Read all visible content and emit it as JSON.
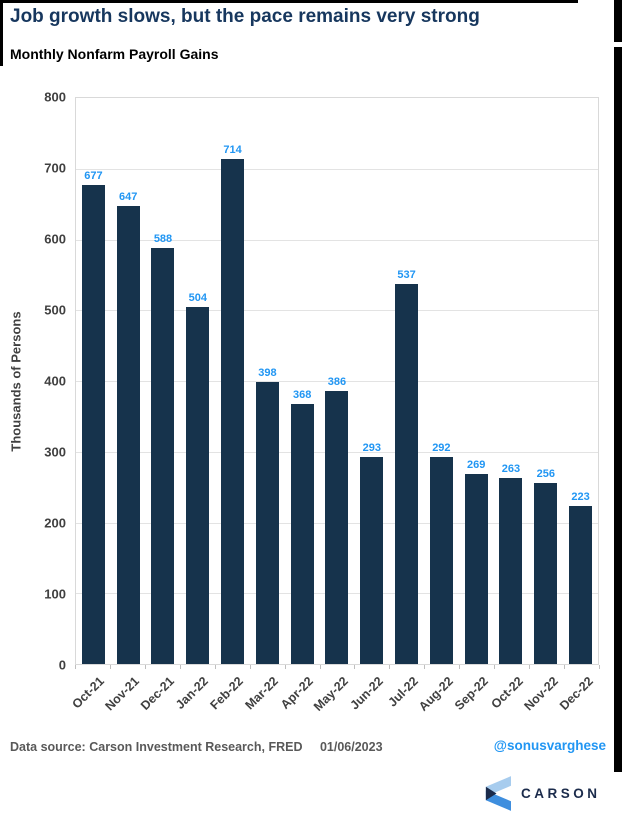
{
  "header": {
    "title": "Job growth slows, but the pace remains very strong",
    "subtitle": "Monthly Nonfarm Payroll Gains"
  },
  "chart_data": {
    "type": "bar",
    "title": "Monthly Nonfarm Payroll Gains",
    "categories": [
      "Oct-21",
      "Nov-21",
      "Dec-21",
      "Jan-22",
      "Feb-22",
      "Mar-22",
      "Apr-22",
      "May-22",
      "Jun-22",
      "Jul-22",
      "Aug-22",
      "Sep-22",
      "Oct-22",
      "Nov-22",
      "Dec-22"
    ],
    "values": [
      677,
      647,
      588,
      504,
      714,
      398,
      368,
      386,
      293,
      537,
      292,
      269,
      263,
      256,
      223
    ],
    "xlabel": "",
    "ylabel": "Thousands of Persons",
    "ylim": [
      0,
      800
    ],
    "yticks": [
      0,
      100,
      200,
      300,
      400,
      500,
      600,
      700,
      800
    ],
    "grid": true,
    "legend": false,
    "bar_color": "#16334C",
    "value_label_color": "#2196F3"
  },
  "footer": {
    "source_label": "Data source:",
    "source_value": "Carson Investment Research, FRED",
    "date": "01/06/2023",
    "handle": "@sonusvarghese",
    "logo_text": "CARSON"
  },
  "colors": {
    "title": "#17375E",
    "bar": "#16334C",
    "value_label": "#2196F3",
    "axis_text": "#404040",
    "footer_text": "#595959",
    "handle": "#2196F3",
    "gridline": "#E3E3E3",
    "logo_light_blue": "#A7CCEE",
    "logo_mid_blue": "#3E8EDE",
    "logo_navy": "#1B2B4B"
  }
}
